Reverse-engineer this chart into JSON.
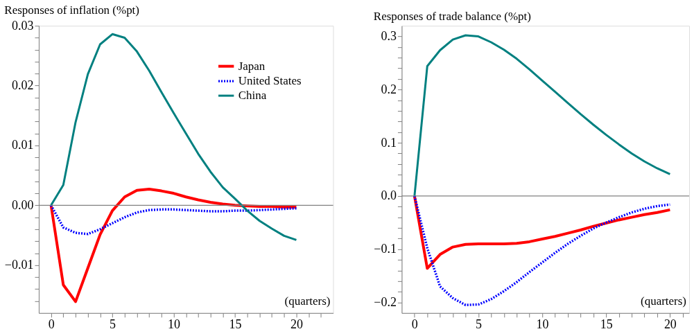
{
  "chart_data": [
    {
      "type": "line",
      "title": "Responses of inflation (%pt)",
      "annotations": [
        "(quarters)"
      ],
      "x": [
        0,
        1,
        2,
        3,
        4,
        5,
        6,
        7,
        8,
        9,
        10,
        11,
        12,
        13,
        14,
        15,
        16,
        17,
        18,
        19,
        20
      ],
      "series": [
        {
          "name": "Japan",
          "color": "#ff0000",
          "line_style": "solid",
          "values": [
            0,
            -0.0133,
            -0.0161,
            -0.0105,
            -0.0049,
            -0.0009,
            0.0014,
            0.0025,
            0.0027,
            0.0024,
            0.002,
            0.0014,
            0.0009,
            0.0005,
            0.0002,
            0.0,
            -0.0001,
            -0.0002,
            -0.0002,
            -0.0003,
            -0.0003
          ]
        },
        {
          "name": "United States",
          "color": "#0000ff",
          "line_style": "dotted",
          "values": [
            0,
            -0.0037,
            -0.0046,
            -0.0048,
            -0.004,
            -0.003,
            -0.002,
            -0.0012,
            -0.0008,
            -0.0007,
            -0.0007,
            -0.0008,
            -0.0009,
            -0.001,
            -0.001,
            -0.0009,
            -0.0009,
            -0.0008,
            -0.0007,
            -0.0006,
            -0.0005
          ]
        },
        {
          "name": "China",
          "color": "#008080",
          "line_style": "solid",
          "values": [
            0,
            0.0034,
            0.0139,
            0.0219,
            0.0269,
            0.0286,
            0.028,
            0.0257,
            0.0225,
            0.0189,
            0.0154,
            0.012,
            0.0086,
            0.0056,
            0.003,
            0.0011,
            -0.0009,
            -0.0026,
            -0.0039,
            -0.0051,
            -0.0058
          ]
        }
      ],
      "xlim": [
        -1,
        23
      ],
      "xticks": [
        0,
        {
          "value": 1,
          "label": null
        },
        {
          "value": 2,
          "label": null
        },
        {
          "value": 3,
          "label": null
        },
        {
          "value": 4,
          "label": null
        },
        5,
        {
          "value": 6,
          "label": null
        },
        {
          "value": 7,
          "label": null
        },
        {
          "value": 8,
          "label": null
        },
        {
          "value": 9,
          "label": null
        },
        10,
        {
          "value": 11,
          "label": null
        },
        {
          "value": 12,
          "label": null
        },
        {
          "value": 13,
          "label": null
        },
        {
          "value": 14,
          "label": null
        },
        15,
        {
          "value": 16,
          "label": null
        },
        {
          "value": 17,
          "label": null
        },
        {
          "value": 18,
          "label": null
        },
        {
          "value": 19,
          "label": null
        },
        20,
        {
          "value": 21,
          "label": null
        },
        {
          "value": 22,
          "label": null
        }
      ],
      "ylim": [
        -0.018,
        0.03
      ],
      "yticks": [
        {
          "value": -0.016,
          "label": null
        },
        {
          "value": -0.014,
          "label": null
        },
        {
          "value": -0.012,
          "label": null
        },
        {
          "value": -0.01,
          "label": "−0.01"
        },
        {
          "value": -0.008,
          "label": null
        },
        {
          "value": -0.006,
          "label": null
        },
        {
          "value": -0.004,
          "label": null
        },
        {
          "value": -0.002,
          "label": null
        },
        {
          "value": 0,
          "label": "0.00"
        },
        {
          "value": 0.002,
          "label": null
        },
        {
          "value": 0.004,
          "label": null
        },
        {
          "value": 0.006,
          "label": null
        },
        {
          "value": 0.008,
          "label": null
        },
        {
          "value": 0.01,
          "label": "0.01"
        },
        {
          "value": 0.012,
          "label": null
        },
        {
          "value": 0.014,
          "label": null
        },
        {
          "value": 0.016,
          "label": null
        },
        {
          "value": 0.018,
          "label": null
        },
        {
          "value": 0.02,
          "label": "0.02"
        },
        {
          "value": 0.022,
          "label": null
        },
        {
          "value": 0.024,
          "label": null
        },
        {
          "value": 0.026,
          "label": null
        },
        {
          "value": 0.028,
          "label": null
        },
        {
          "value": 0.03,
          "label": "0.03"
        }
      ],
      "ref_lines": [
        {
          "axis": "y",
          "value": 0,
          "color": "#808080"
        }
      ],
      "grid": false,
      "legend": "top right"
    },
    {
      "type": "line",
      "title": "Responses of trade balance (%pt)",
      "annotations": [
        "(quarters)"
      ],
      "x": [
        0,
        1,
        2,
        3,
        4,
        5,
        6,
        7,
        8,
        9,
        10,
        11,
        12,
        13,
        14,
        15,
        16,
        17,
        18,
        19,
        20
      ],
      "series": [
        {
          "color": "#ff0000",
          "line_style": "solid",
          "values": [
            0,
            -0.136,
            -0.11,
            -0.096,
            -0.091,
            -0.09,
            -0.09,
            -0.09,
            -0.089,
            -0.086,
            -0.081,
            -0.076,
            -0.07,
            -0.064,
            -0.057,
            -0.051,
            -0.045,
            -0.04,
            -0.035,
            -0.031,
            -0.026
          ]
        },
        {
          "color": "#0000ff",
          "line_style": "dotted",
          "values": [
            0,
            -0.098,
            -0.17,
            -0.192,
            -0.205,
            -0.204,
            -0.194,
            -0.179,
            -0.162,
            -0.143,
            -0.125,
            -0.107,
            -0.09,
            -0.075,
            -0.061,
            -0.05,
            -0.04,
            -0.031,
            -0.024,
            -0.019,
            -0.016
          ]
        },
        {
          "color": "#008080",
          "line_style": "solid",
          "values": [
            0,
            0.244,
            0.274,
            0.294,
            0.302,
            0.3,
            0.289,
            0.275,
            0.258,
            0.238,
            0.217,
            0.196,
            0.175,
            0.154,
            0.134,
            0.115,
            0.097,
            0.08,
            0.065,
            0.052,
            0.041
          ]
        }
      ],
      "xlim": [
        -1,
        21.5
      ],
      "xticks": [
        0,
        {
          "value": 1,
          "label": null
        },
        {
          "value": 2,
          "label": null
        },
        {
          "value": 3,
          "label": null
        },
        {
          "value": 4,
          "label": null
        },
        5,
        {
          "value": 6,
          "label": null
        },
        {
          "value": 7,
          "label": null
        },
        {
          "value": 8,
          "label": null
        },
        {
          "value": 9,
          "label": null
        },
        10,
        {
          "value": 11,
          "label": null
        },
        {
          "value": 12,
          "label": null
        },
        {
          "value": 13,
          "label": null
        },
        {
          "value": 14,
          "label": null
        },
        15,
        {
          "value": 16,
          "label": null
        },
        {
          "value": 17,
          "label": null
        },
        {
          "value": 18,
          "label": null
        },
        {
          "value": 19,
          "label": null
        },
        20,
        {
          "value": 21,
          "label": null
        }
      ],
      "ylim": [
        -0.22,
        0.32
      ],
      "yticks": [
        {
          "value": -0.2,
          "label": "−0.2"
        },
        {
          "value": -0.18,
          "label": null
        },
        {
          "value": -0.16,
          "label": null
        },
        {
          "value": -0.14,
          "label": null
        },
        {
          "value": -0.12,
          "label": null
        },
        {
          "value": -0.1,
          "label": "−0.1"
        },
        {
          "value": -0.08,
          "label": null
        },
        {
          "value": -0.06,
          "label": null
        },
        {
          "value": -0.04,
          "label": null
        },
        {
          "value": -0.02,
          "label": null
        },
        {
          "value": 0,
          "label": "0.0"
        },
        {
          "value": 0.02,
          "label": null
        },
        {
          "value": 0.04,
          "label": null
        },
        {
          "value": 0.06,
          "label": null
        },
        {
          "value": 0.08,
          "label": null
        },
        {
          "value": 0.1,
          "label": "0.1"
        },
        {
          "value": 0.12,
          "label": null
        },
        {
          "value": 0.14,
          "label": null
        },
        {
          "value": 0.16,
          "label": null
        },
        {
          "value": 0.18,
          "label": null
        },
        {
          "value": 0.2,
          "label": "0.2"
        },
        {
          "value": 0.22,
          "label": null
        },
        {
          "value": 0.24,
          "label": null
        },
        {
          "value": 0.26,
          "label": null
        },
        {
          "value": 0.28,
          "label": null
        },
        {
          "value": 0.3,
          "label": "0.3"
        }
      ],
      "ref_lines": [
        {
          "axis": "y",
          "value": 0,
          "color": "#808080"
        }
      ],
      "grid": false
    }
  ]
}
